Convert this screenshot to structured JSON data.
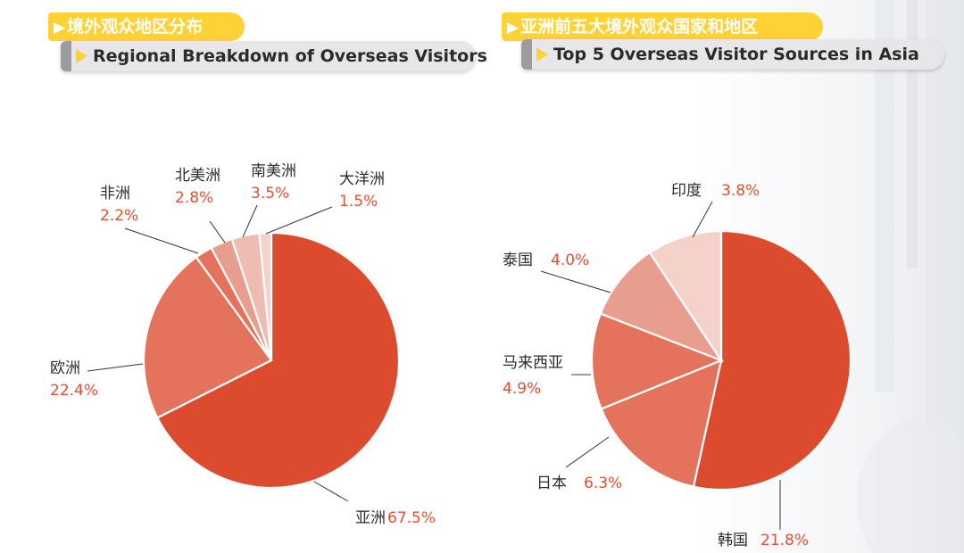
{
  "colors": {
    "tab_yellow": "#fcd235",
    "tab_gray": "#e7e7ea",
    "label_value": "#e4502f",
    "slices": [
      "#dc4b2e",
      "#e3735c",
      "#e89e8f",
      "#efbcb1",
      "#f4d2ca"
    ]
  },
  "left_panel": {
    "tab_cn": "境外观众地区分布",
    "tab_en": "Regional Breakdown of Overseas Visitors"
  },
  "right_panel": {
    "tab_cn": "亚洲前五大境外观众国家和地区",
    "tab_en": "Top 5 Overseas Visitor Sources in Asia"
  },
  "chart_data": [
    {
      "type": "pie",
      "title": "境外观众地区分布",
      "slices": [
        {
          "label": "亚洲",
          "value": 67.5,
          "display": "67.5%"
        },
        {
          "label": "欧洲",
          "value": 22.4,
          "display": "22.4%"
        },
        {
          "label": "非洲",
          "value": 2.2,
          "display": "2.2%"
        },
        {
          "label": "北美洲",
          "value": 2.8,
          "display": "2.8%"
        },
        {
          "label": "南美洲",
          "value": 3.5,
          "display": "3.5%"
        },
        {
          "label": "大洋洲",
          "value": 1.5,
          "display": "1.5%"
        }
      ]
    },
    {
      "type": "pie",
      "title": "亚洲前五大境外观众国家和地区",
      "slices": [
        {
          "label": "韩国",
          "value": 21.8,
          "display": "21.8%"
        },
        {
          "label": "日本",
          "value": 6.3,
          "display": "6.3%"
        },
        {
          "label": "马来西亚",
          "value": 4.9,
          "display": "4.9%"
        },
        {
          "label": "泰国",
          "value": 4.0,
          "display": "4.0%"
        },
        {
          "label": "印度",
          "value": 3.8,
          "display": "3.8%"
        }
      ]
    }
  ]
}
